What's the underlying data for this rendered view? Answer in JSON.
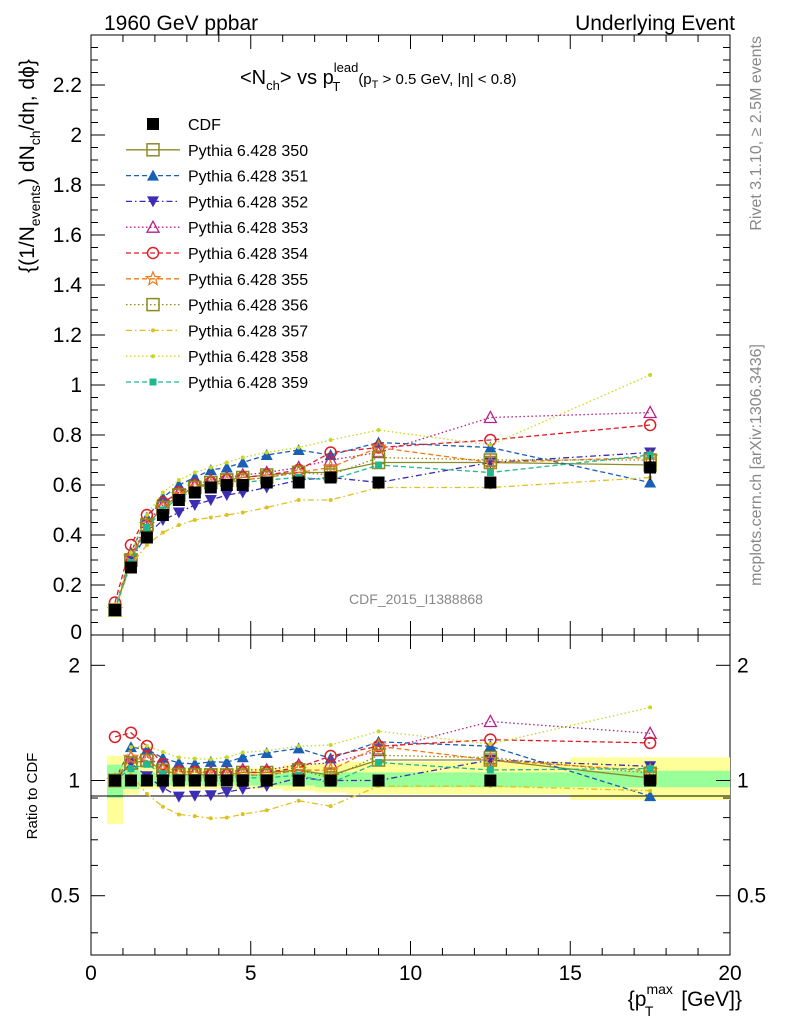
{
  "header": {
    "left": "1960 GeV ppbar",
    "right": "Underlying Event"
  },
  "side_labels": {
    "rivet": "Rivet 3.1.10, ≥ 2.5M events",
    "mcplots": "mcplots.cern.ch [arXiv:1306.3436]"
  },
  "watermark": "CDF_2015_I1388868",
  "title": {
    "main": "<N",
    "main_sub": "ch",
    "main_mid": "> vs p",
    "main_sup": "lead",
    "main_sub2": "T",
    "cut": "(p",
    "cut_sub": "T",
    "cut_rest": " > 0.5 GeV, |η| < 0.8)"
  },
  "yaxis_main": {
    "a": "{(1/N",
    "a_sub": "events",
    "b": ") dN",
    "b_sub": "ch",
    "c": "/dη, dϕ}"
  },
  "yaxis_ratio": "Ratio to CDF",
  "xaxis": {
    "a": "{p",
    "a_sup": "max",
    "a_sub": "T",
    "b": " [GeV]}"
  },
  "colors": {
    "cdf": "#000000",
    "p350": "#8b8b2a",
    "p351": "#1a5fb4",
    "p352": "#3d2db5",
    "p353": "#b5208a",
    "p354": "#d9202a",
    "p355": "#f07a1a",
    "p356": "#8a8a1a",
    "p357": "#e0c020",
    "p358": "#c8d820",
    "p359": "#20b890",
    "band_inner": "#99ff99",
    "band_outer": "#ffff99"
  },
  "chart_data": {
    "type": "scatter",
    "xlim": [
      0,
      20
    ],
    "ylim_main": [
      0,
      2.4
    ],
    "ylim_ratio": [
      0.35,
      2.4
    ],
    "x_ticks": [
      0,
      5,
      10,
      15,
      20
    ],
    "y_ticks_main": [
      0.2,
      0.4,
      0.6,
      0.8,
      1,
      1.2,
      1.4,
      1.6,
      1.8,
      2,
      2.2
    ],
    "y_ticks_main_bottom": "0",
    "y_ticks_ratio": [
      0.5,
      1,
      2
    ],
    "x": [
      0.75,
      1.25,
      1.75,
      2.25,
      2.75,
      3.25,
      3.75,
      4.25,
      4.75,
      5.5,
      6.5,
      7.5,
      9.0,
      12.5,
      17.5
    ],
    "ratio_band_edges": [
      0.5,
      1.0,
      1.5,
      2.0,
      2.5,
      3.0,
      3.5,
      4.0,
      4.5,
      5.0,
      6.0,
      7.0,
      8.0,
      10.0,
      15.0,
      20.0
    ],
    "ratio_band_inner": [
      [
        0.9,
        1.1
      ],
      [
        0.95,
        1.07
      ],
      [
        0.97,
        1.05
      ],
      [
        0.97,
        1.04
      ],
      [
        0.97,
        1.04
      ],
      [
        0.97,
        1.04
      ],
      [
        0.97,
        1.04
      ],
      [
        0.97,
        1.04
      ],
      [
        0.97,
        1.04
      ],
      [
        0.97,
        1.04
      ],
      [
        0.97,
        1.05
      ],
      [
        0.96,
        1.05
      ],
      [
        0.96,
        1.05
      ],
      [
        0.96,
        1.05
      ],
      [
        0.96,
        1.06
      ]
    ],
    "ratio_band_outer": [
      [
        0.77,
        1.16
      ],
      [
        0.92,
        1.12
      ],
      [
        0.95,
        1.09
      ],
      [
        0.95,
        1.08
      ],
      [
        0.95,
        1.08
      ],
      [
        0.95,
        1.08
      ],
      [
        0.95,
        1.08
      ],
      [
        0.95,
        1.08
      ],
      [
        0.95,
        1.08
      ],
      [
        0.95,
        1.08
      ],
      [
        0.94,
        1.1
      ],
      [
        0.93,
        1.11
      ],
      [
        0.92,
        1.12
      ],
      [
        0.92,
        1.12
      ],
      [
        0.89,
        1.15
      ]
    ],
    "series": [
      {
        "name": "CDF",
        "key": "cdf",
        "style": "data",
        "marker": "square-filled",
        "values": [
          0.1,
          0.27,
          0.39,
          0.48,
          0.54,
          0.57,
          0.59,
          0.6,
          0.6,
          0.61,
          0.61,
          0.63,
          0.61,
          0.61,
          0.67
        ],
        "err": [
          0.01,
          0.01,
          0.01,
          0.01,
          0.01,
          0.01,
          0.01,
          0.01,
          0.01,
          0.01,
          0.02,
          0.02,
          0.02,
          0.02,
          0.05
        ]
      },
      {
        "name": "Pythia 6.428 350",
        "key": "p350",
        "style": "solid",
        "marker": "square-open",
        "values": [
          0.1,
          0.3,
          0.44,
          0.51,
          0.56,
          0.59,
          0.61,
          0.62,
          0.63,
          0.64,
          0.65,
          0.65,
          0.69,
          0.69,
          0.68
        ]
      },
      {
        "name": "Pythia 6.428 351",
        "key": "p351",
        "style": "dash",
        "marker": "triangle-up-filled",
        "values": [
          0.1,
          0.33,
          0.47,
          0.55,
          0.6,
          0.63,
          0.66,
          0.67,
          0.69,
          0.72,
          0.74,
          0.72,
          0.77,
          0.75,
          0.61
        ]
      },
      {
        "name": "Pythia 6.428 352",
        "key": "p352",
        "style": "dashdot",
        "marker": "triangle-down-filled",
        "values": [
          0.1,
          0.3,
          0.4,
          0.46,
          0.49,
          0.52,
          0.54,
          0.56,
          0.57,
          0.59,
          0.62,
          0.63,
          0.61,
          0.69,
          0.73
        ]
      },
      {
        "name": "Pythia 6.428 353",
        "key": "p353",
        "style": "dot",
        "marker": "triangle-up-open",
        "values": [
          0.1,
          0.31,
          0.45,
          0.52,
          0.57,
          0.6,
          0.62,
          0.63,
          0.64,
          0.65,
          0.67,
          0.7,
          0.73,
          0.87,
          0.89
        ]
      },
      {
        "name": "Pythia 6.428 354",
        "key": "p354",
        "style": "dash",
        "marker": "circle-open",
        "values": [
          0.13,
          0.36,
          0.48,
          0.53,
          0.57,
          0.6,
          0.61,
          0.62,
          0.63,
          0.64,
          0.66,
          0.73,
          0.75,
          0.78,
          0.84
        ]
      },
      {
        "name": "Pythia 6.428 355",
        "key": "p355",
        "style": "dash",
        "marker": "star-open",
        "values": [
          0.1,
          0.31,
          0.44,
          0.51,
          0.56,
          0.59,
          0.6,
          0.61,
          0.62,
          0.63,
          0.65,
          0.67,
          0.75,
          0.69,
          0.71
        ]
      },
      {
        "name": "Pythia 6.428 356",
        "key": "p356",
        "style": "dot",
        "marker": "square-open",
        "values": [
          0.1,
          0.3,
          0.44,
          0.51,
          0.56,
          0.59,
          0.61,
          0.62,
          0.62,
          0.63,
          0.65,
          0.64,
          0.71,
          0.7,
          0.7
        ]
      },
      {
        "name": "Pythia 6.428 357",
        "key": "p357",
        "style": "dashdot",
        "marker": "dot",
        "values": [
          0.1,
          0.28,
          0.36,
          0.41,
          0.44,
          0.46,
          0.47,
          0.48,
          0.49,
          0.51,
          0.54,
          0.54,
          0.59,
          0.59,
          0.63
        ]
      },
      {
        "name": "Pythia 6.428 358",
        "key": "p358",
        "style": "dot",
        "marker": "dot",
        "values": [
          0.1,
          0.33,
          0.48,
          0.57,
          0.62,
          0.65,
          0.67,
          0.69,
          0.71,
          0.73,
          0.75,
          0.78,
          0.82,
          0.76,
          1.04
        ]
      },
      {
        "name": "Pythia 6.428 359",
        "key": "p359",
        "style": "dash",
        "marker": "square-small",
        "values": [
          0.1,
          0.29,
          0.43,
          0.5,
          0.55,
          0.58,
          0.6,
          0.61,
          0.61,
          0.62,
          0.63,
          0.62,
          0.68,
          0.65,
          0.72
        ]
      }
    ]
  }
}
